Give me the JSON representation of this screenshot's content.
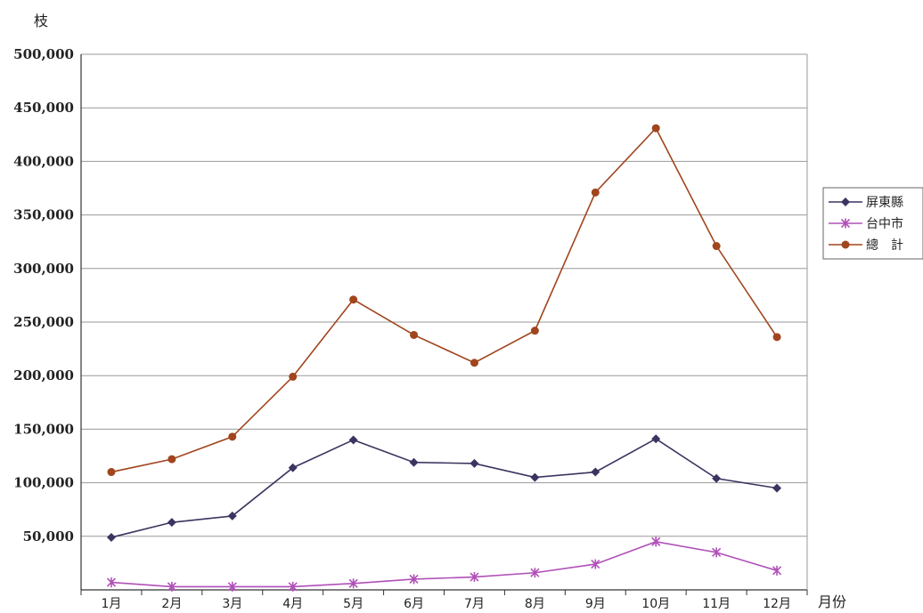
{
  "chart_data": {
    "type": "line",
    "title": "",
    "ylabel": "枝",
    "xlabel": "月份",
    "categories": [
      "1月",
      "2月",
      "3月",
      "4月",
      "5月",
      "6月",
      "7月",
      "8月",
      "9月",
      "10月",
      "11月",
      "12月"
    ],
    "ylim": [
      0,
      500000
    ],
    "yticks": [
      "50,000",
      "100,000",
      "150,000",
      "200,000",
      "250,000",
      "300,000",
      "350,000",
      "400,000",
      "450,000",
      "500,000"
    ],
    "ytick_values": [
      50000,
      100000,
      150000,
      200000,
      250000,
      300000,
      350000,
      400000,
      450000,
      500000
    ],
    "grid": true,
    "legend_position": "right",
    "series": [
      {
        "name": "屏東縣",
        "color": "#3a3560",
        "marker": "diamond",
        "values": [
          49000,
          63000,
          69000,
          114000,
          140000,
          119000,
          118000,
          105000,
          110000,
          141000,
          104000,
          95000
        ]
      },
      {
        "name": "台中市",
        "color": "#b050b8",
        "marker": "star",
        "values": [
          7000,
          3000,
          3000,
          3000,
          6000,
          10000,
          12000,
          16000,
          24000,
          45000,
          35000,
          18000
        ]
      },
      {
        "name": "總　計",
        "color": "#a0451e",
        "marker": "circle",
        "values": [
          110000,
          122000,
          143000,
          199000,
          271000,
          238000,
          212000,
          242000,
          371000,
          431000,
          321000,
          236000
        ]
      }
    ]
  }
}
